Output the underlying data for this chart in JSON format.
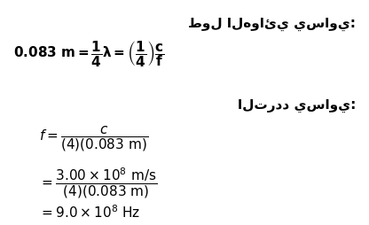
{
  "bg_color": "#ffffff",
  "arabic_title1": "طول الهوائي يساوي:",
  "arabic_title2": "التردد يساوي:",
  "eq1": "$\\mathbf{0.083 \\ m = \\dfrac{1}{4}\\lambda = \\left(\\dfrac{1}{4}\\right)\\dfrac{c}{f}}$",
  "eq2": "$f = \\dfrac{c}{(4)(0.083 \\ \\mathrm{m})}$",
  "eq3": "$= \\dfrac{3.00 \\times 10^{8} \\ \\mathrm{m/s}}{(4)(0.083 \\ \\mathrm{m})}$",
  "eq4": "$= 9.0 \\times 10^{8} \\ \\mathrm{Hz}$",
  "figsize": [
    4.16,
    2.55
  ],
  "dpi": 100
}
